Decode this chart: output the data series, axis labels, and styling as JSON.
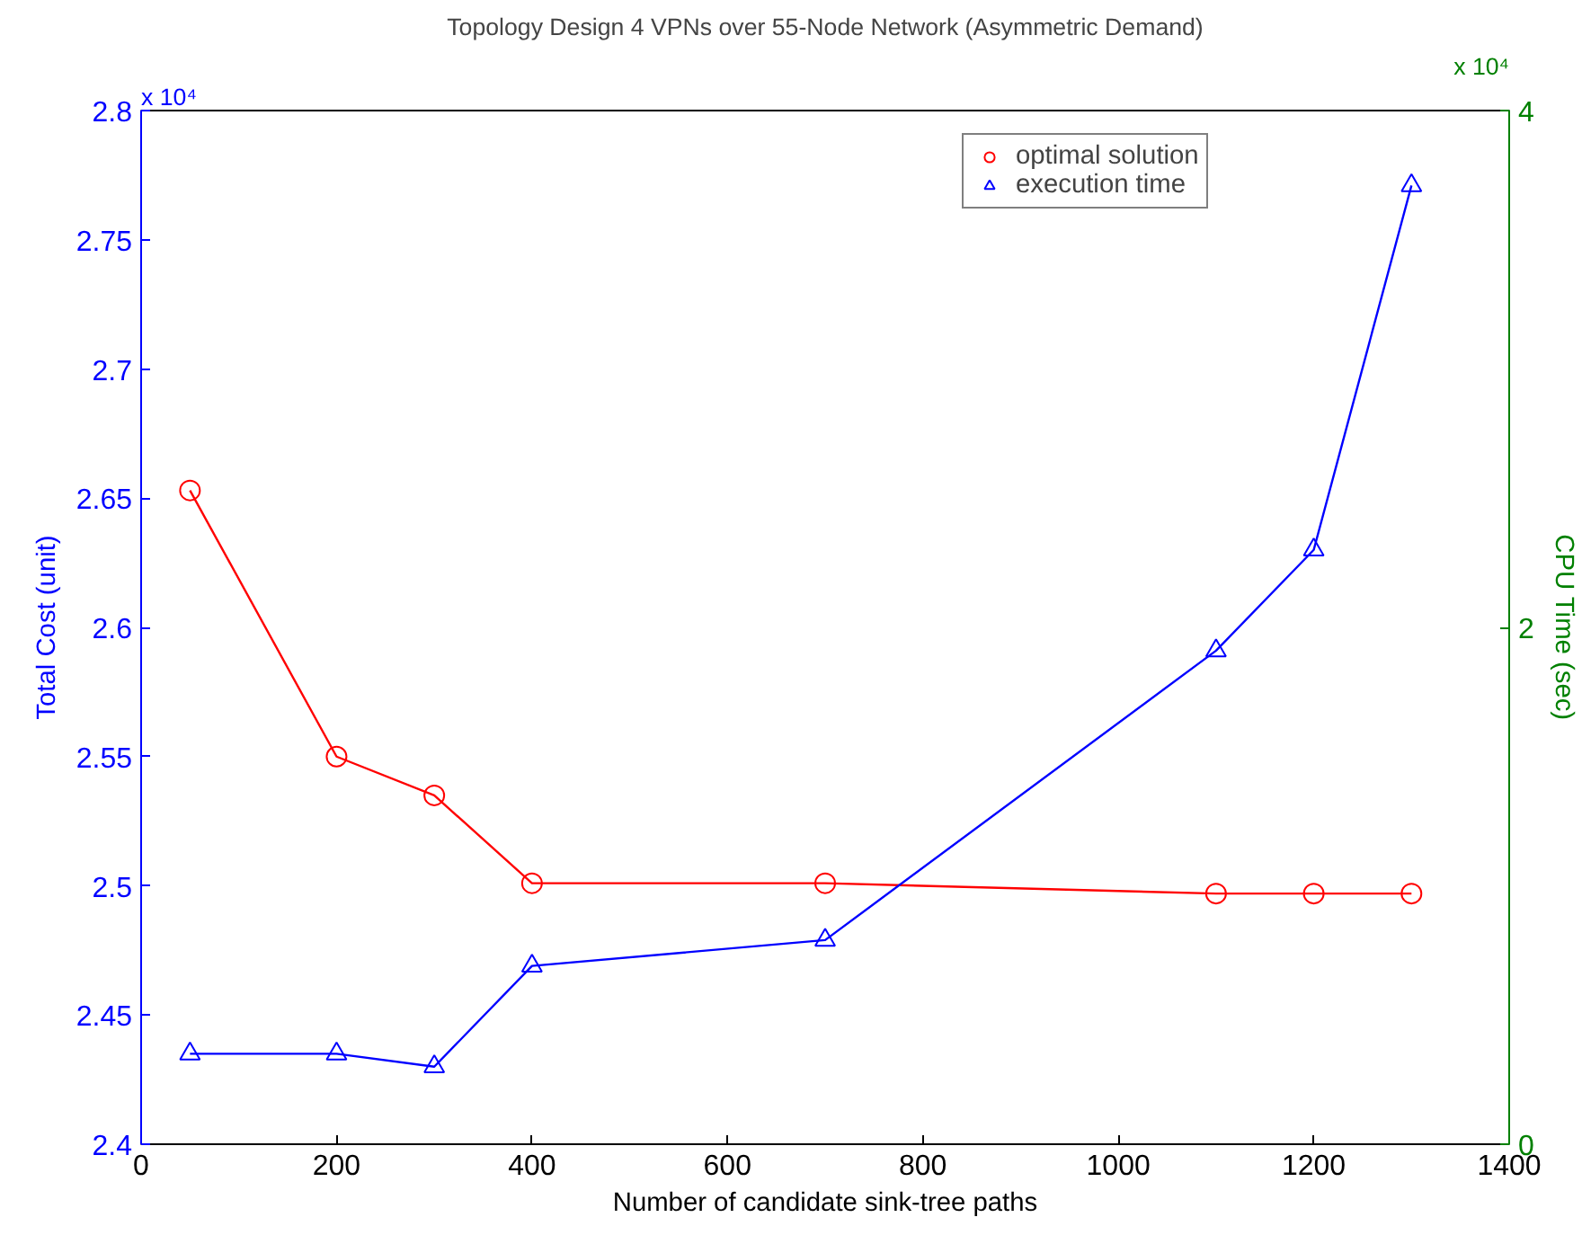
{
  "chart_data": {
    "type": "line",
    "title": "Topology Design 4 VPNs over 55-Node Network (Asymmetric Demand)",
    "xlabel": "Number of candidate sink-tree paths",
    "ylabel": "Total Cost (unit)",
    "y2label": "CPU Time (sec)",
    "annotations": [
      "x 10⁴",
      "x 10⁴"
    ],
    "x": [
      50,
      200,
      300,
      400,
      700,
      1100,
      1200,
      1300
    ],
    "series": [
      {
        "name": "optimal solution",
        "color": "#ff0000",
        "marker": "circle",
        "values": [
          2.653,
          2.55,
          2.535,
          2.501,
          2.501,
          2.497,
          2.497,
          2.497
        ]
      },
      {
        "name": "execution time",
        "color": "#0000ff",
        "marker": "triangle",
        "axis": "y2",
        "values": [
          0.35,
          0.35,
          0.3,
          0.69,
          0.79,
          1.91,
          2.3,
          3.71
        ]
      }
    ],
    "xlim": [
      0,
      1400
    ],
    "xticks": [
      0,
      200,
      400,
      600,
      800,
      1000,
      1200,
      1400
    ],
    "ylim": [
      2.4,
      2.8
    ],
    "yticks": [
      2.4,
      2.45,
      2.5,
      2.55,
      2.6,
      2.65,
      2.7,
      2.75,
      2.8
    ],
    "y2lim": [
      0,
      4
    ],
    "y2ticks": [
      0,
      2,
      4
    ],
    "grid": false,
    "legend": "top right",
    "line_style": "solid"
  }
}
